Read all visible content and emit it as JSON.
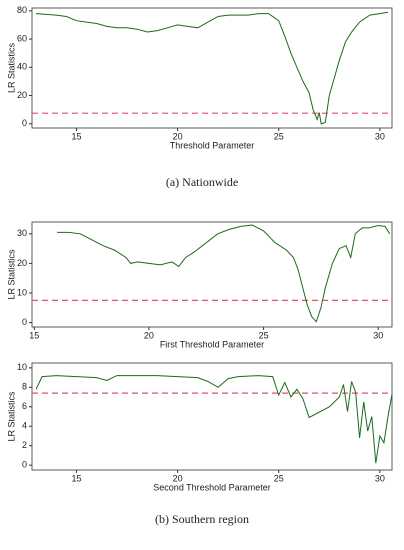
{
  "chart_data": [
    {
      "type": "line",
      "x_label": "Threshold Parameter",
      "y_label": "LR Statistics",
      "caption": "(a)   Nationwide",
      "x": [
        13,
        13.5,
        14,
        14.5,
        15,
        15.5,
        16,
        16.5,
        17,
        17.5,
        18,
        18.5,
        19,
        19.5,
        20,
        20.5,
        21,
        21.5,
        22,
        22.5,
        23,
        23.5,
        24,
        24.5,
        25,
        25.3,
        25.6,
        25.9,
        26.2,
        26.5,
        26.7,
        26.9,
        27,
        27.1,
        27.3,
        27.5,
        27.7,
        28,
        28.3,
        28.6,
        29,
        29.5,
        30,
        30.4
      ],
      "values": [
        78,
        77.5,
        77,
        76,
        73,
        72,
        71,
        69,
        68,
        68,
        67,
        65,
        66,
        68,
        70,
        69,
        68,
        72,
        76,
        77,
        77,
        77,
        78,
        78,
        73,
        62,
        50,
        40,
        30,
        22,
        10,
        3,
        8,
        0,
        1,
        20,
        30,
        45,
        58,
        65,
        72,
        77,
        78,
        79
      ],
      "color": "#1b6b1b",
      "hline": {
        "y": 7.5,
        "color": "#e0506a"
      },
      "xlim": [
        12.8,
        30.6
      ],
      "xticks": [
        15,
        20,
        25,
        30
      ],
      "ylim": [
        -3,
        82
      ],
      "yticks": [
        0,
        20,
        40,
        60,
        80
      ]
    },
    {
      "type": "line",
      "x_label": "First Threshold Parameter",
      "y_label": "LR Statistics",
      "x": [
        16,
        16.5,
        17,
        17.5,
        18,
        18.5,
        19,
        19.2,
        19.5,
        20,
        20.5,
        21,
        21.3,
        21.6,
        22,
        22.5,
        23,
        23.5,
        24,
        24.5,
        25,
        25.5,
        26,
        26.3,
        26.5,
        26.7,
        26.9,
        27.1,
        27.3,
        27.5,
        27.7,
        28,
        28.3,
        28.6,
        28.8,
        29,
        29.3,
        29.6,
        30,
        30.3,
        30.5
      ],
      "values": [
        30.5,
        30.5,
        30,
        28,
        26,
        24.5,
        22,
        20,
        20.5,
        20,
        19.5,
        20.5,
        19,
        22,
        24,
        27,
        30,
        31.5,
        32.5,
        33,
        31,
        27,
        24.5,
        22,
        18,
        12,
        6,
        2,
        0.3,
        5,
        12,
        20,
        25,
        26,
        22,
        30,
        32,
        32,
        32.8,
        32.5,
        30
      ],
      "color": "#1b6b1b",
      "hline": {
        "y": 7.5,
        "color": "#e0506a"
      },
      "xlim": [
        14.9,
        30.6
      ],
      "xticks": [
        15,
        20,
        25,
        30
      ],
      "ylim": [
        -1.5,
        34
      ],
      "yticks": [
        0,
        10,
        20,
        30
      ]
    },
    {
      "type": "line",
      "x_label": "Second Threshold Parameter",
      "y_label": "LR Statistics",
      "caption": "(b) Southern region",
      "x": [
        13,
        13.3,
        14,
        15,
        16,
        16.5,
        17,
        18,
        19,
        20,
        21,
        21.5,
        22,
        22.5,
        23,
        24,
        24.7,
        25,
        25.3,
        25.6,
        25.9,
        26.2,
        26.5,
        27.5,
        28,
        28.2,
        28.4,
        28.6,
        28.8,
        29,
        29.2,
        29.4,
        29.6,
        29.8,
        30,
        30.2,
        30.4,
        30.6
      ],
      "values": [
        7.8,
        9.1,
        9.2,
        9.1,
        9.0,
        8.7,
        9.2,
        9.2,
        9.2,
        9.1,
        9.0,
        8.6,
        8.0,
        8.9,
        9.1,
        9.2,
        9.1,
        7.2,
        8.5,
        7.0,
        7.8,
        6.8,
        4.9,
        6.0,
        7.0,
        8.3,
        5.5,
        8.6,
        7.5,
        2.8,
        6.5,
        3.5,
        5.0,
        0.2,
        3.0,
        2.3,
        5.0,
        7.3
      ],
      "color": "#1b6b1b",
      "hline": {
        "y": 7.4,
        "color": "#e0506a"
      },
      "xlim": [
        12.8,
        30.6
      ],
      "xticks": [
        15,
        20,
        25,
        30
      ],
      "ylim": [
        -0.5,
        10.5
      ],
      "yticks": [
        0,
        2,
        4,
        6,
        8,
        10
      ]
    }
  ]
}
